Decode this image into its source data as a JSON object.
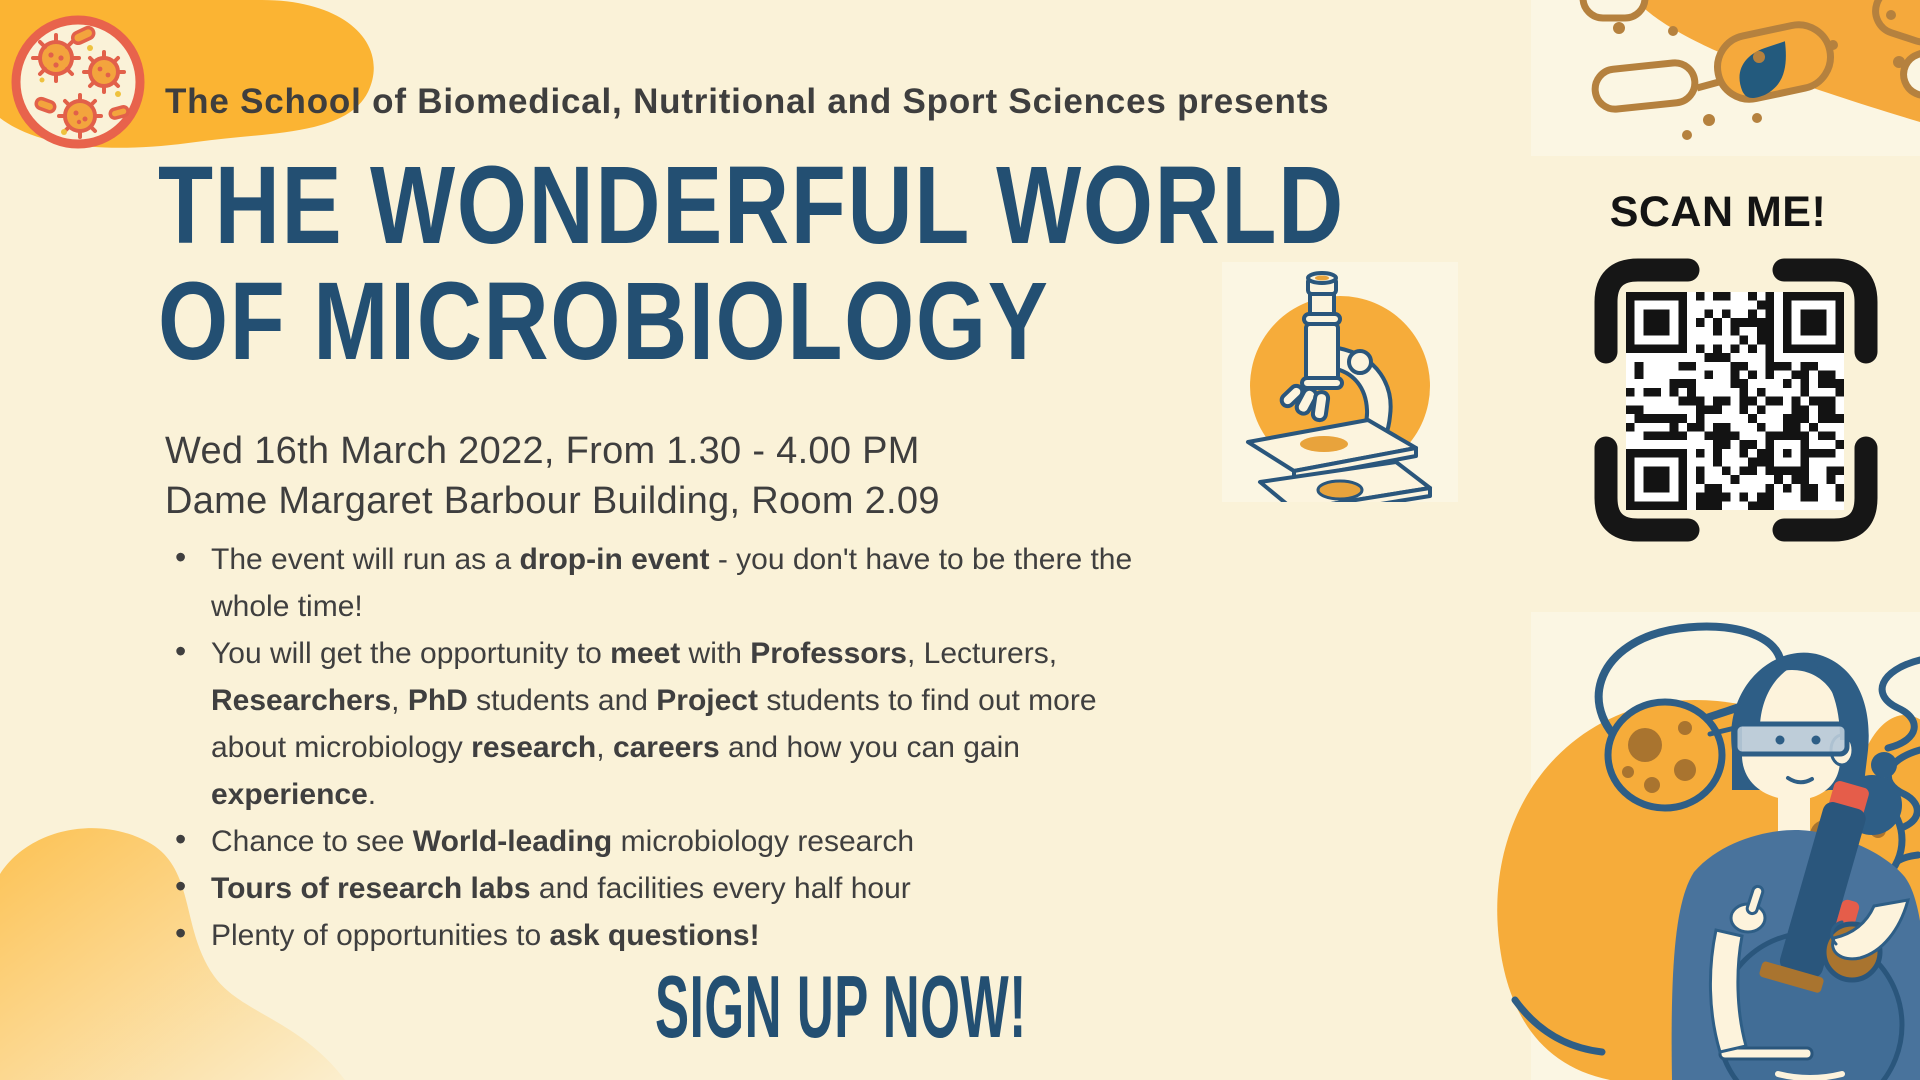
{
  "poster": {
    "presents_line": "The School of Biomedical, Nutritional and Sport Sciences presents",
    "title": {
      "line1": "THE WONDERFUL WORLD",
      "line2": "OF MICROBIOLOGY"
    },
    "event": {
      "datetime": "Wed 16th March 2022, From 1.30 - 4.00 PM",
      "location": "Dame Margaret Barbour Building, Room 2.09"
    },
    "bullets": [
      [
        {
          "text": "The event will run as a ",
          "bold": false
        },
        {
          "text": "drop-in event",
          "bold": true
        },
        {
          "text": " - you don't have to be there the\nwhole time!",
          "bold": false
        }
      ],
      [
        {
          "text": "You will get the opportunity to ",
          "bold": false
        },
        {
          "text": "meet",
          "bold": true
        },
        {
          "text": " with ",
          "bold": false
        },
        {
          "text": "Professors",
          "bold": true
        },
        {
          "text": ", Lecturers,\n",
          "bold": false
        },
        {
          "text": "Researchers",
          "bold": true
        },
        {
          "text": ", ",
          "bold": false
        },
        {
          "text": "PhD",
          "bold": true
        },
        {
          "text": " students and ",
          "bold": false
        },
        {
          "text": "Project",
          "bold": true
        },
        {
          "text": " students to find out more\nabout microbiology ",
          "bold": false
        },
        {
          "text": "research",
          "bold": true
        },
        {
          "text": ", ",
          "bold": false
        },
        {
          "text": "careers",
          "bold": true
        },
        {
          "text": " and how you can gain\n",
          "bold": false
        },
        {
          "text": "experience",
          "bold": true
        },
        {
          "text": ".",
          "bold": false
        }
      ],
      [
        {
          "text": "Chance to see ",
          "bold": false
        },
        {
          "text": "World-leading",
          "bold": true
        },
        {
          "text": " microbiology research",
          "bold": false
        }
      ],
      [
        {
          "text": "Tours of research labs",
          "bold": true
        },
        {
          "text": " and facilities every half hour",
          "bold": false
        }
      ],
      [
        {
          "text": "Plenty of opportunities to ",
          "bold": false
        },
        {
          "text": "ask questions!",
          "bold": true
        }
      ]
    ],
    "cta_label": "SIGN UP NOW!",
    "qr": {
      "label": "SCAN ME!"
    },
    "decorations": [
      "petri-dish-icon",
      "bacteria-illustration",
      "microscope-illustration",
      "scientist-illustration",
      "qr-code"
    ],
    "colors": {
      "background": "#faf2d8",
      "panel": "#fbf6e3",
      "accent_yellow": "#f6ac3a",
      "blob_yellow": "#fbb433",
      "title_blue": "#234f72",
      "body_text": "#3e3e3e",
      "black": "#141414",
      "petri_ring_red": "#e8634c",
      "microbe_orange": "#f3a43d",
      "bacteria_brown": "#b5813e",
      "illustration_navy": "#2e5e86",
      "shirt_blue": "#49739c",
      "accent_red": "#e55d4a",
      "knob_brown": "#a9742f",
      "qr_white": "#ffffff"
    }
  }
}
